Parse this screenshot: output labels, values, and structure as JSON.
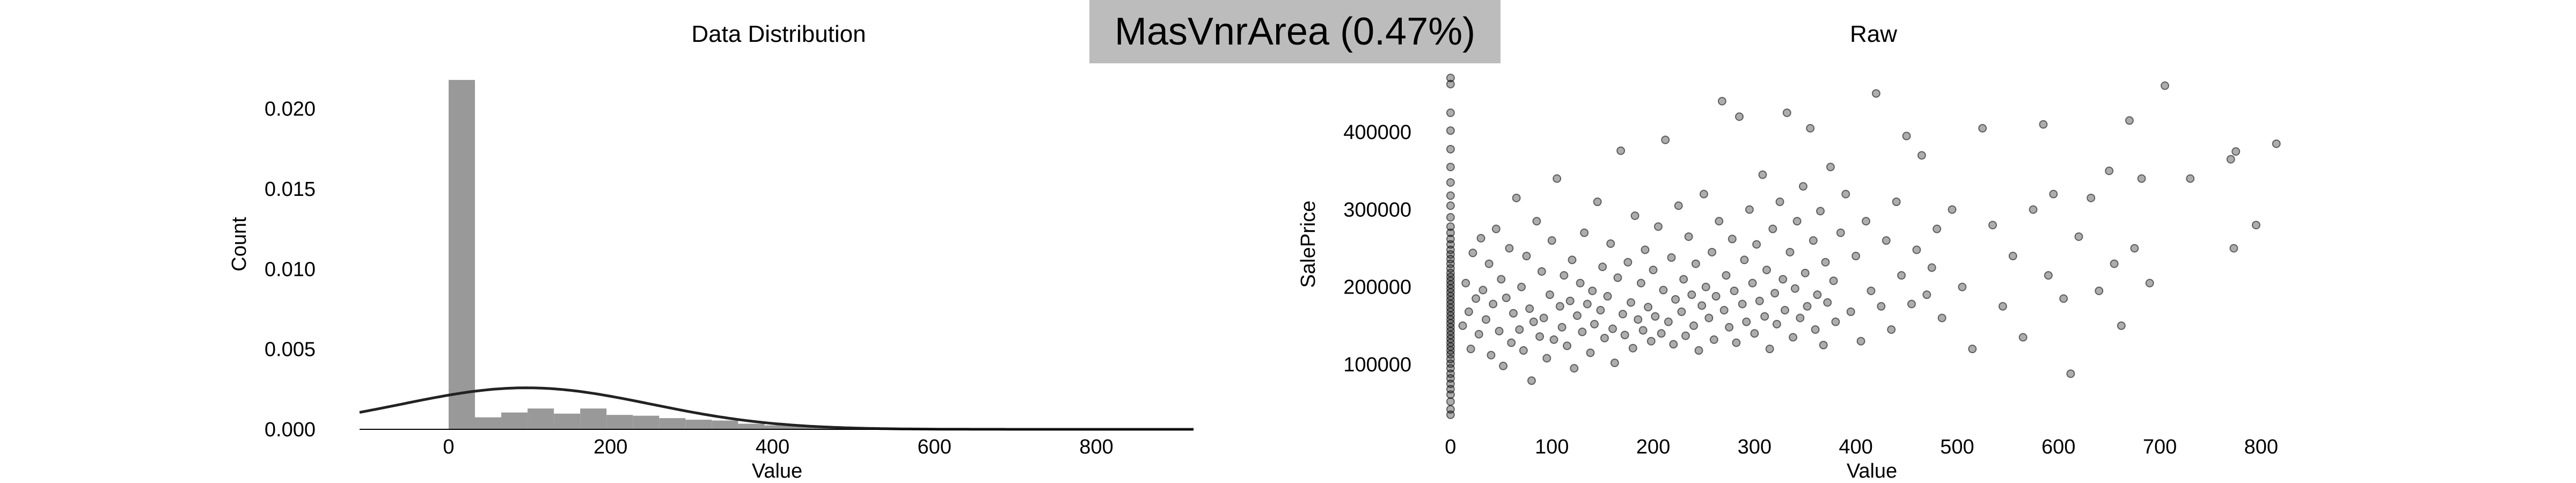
{
  "figure": {
    "title": "MasVnrArea (0.47%)",
    "banner_color": "#bcbcbc"
  },
  "chart_data": [
    {
      "type": "bar",
      "title": "Data Distribution",
      "xlabel": "Value",
      "ylabel": "Count",
      "xlim": [
        -110,
        920
      ],
      "ylim": [
        0,
        0.0221
      ],
      "xticks": [
        0,
        200,
        400,
        600,
        800
      ],
      "yticks": [
        "0.000",
        "0.005",
        "0.010",
        "0.015",
        "0.020"
      ],
      "bar_color": "#999999",
      "curve_color": "#222222",
      "bin_width": 32.5,
      "bins": [
        {
          "x": 0,
          "value": 0.0218
        },
        {
          "x": 32.5,
          "value": 0.00075
        },
        {
          "x": 65,
          "value": 0.00105
        },
        {
          "x": 97.5,
          "value": 0.0013
        },
        {
          "x": 130,
          "value": 0.00098
        },
        {
          "x": 162.5,
          "value": 0.0013
        },
        {
          "x": 195,
          "value": 0.0009
        },
        {
          "x": 227.5,
          "value": 0.00085
        },
        {
          "x": 260,
          "value": 0.0007
        },
        {
          "x": 292.5,
          "value": 0.0006
        },
        {
          "x": 325,
          "value": 0.00055
        },
        {
          "x": 357.5,
          "value": 0.00035
        },
        {
          "x": 390,
          "value": 0.00025
        },
        {
          "x": 422.5,
          "value": 0.0002
        },
        {
          "x": 455,
          "value": 0.0001
        },
        {
          "x": 487.5,
          "value": 8e-05
        },
        {
          "x": 520,
          "value": 6e-05
        },
        {
          "x": 552.5,
          "value": 5e-05
        },
        {
          "x": 585,
          "value": 2e-05
        },
        {
          "x": 617.5,
          "value": 7e-05
        },
        {
          "x": 650,
          "value": 8e-05
        },
        {
          "x": 682.5,
          "value": 1e-05
        },
        {
          "x": 715,
          "value": 2e-05
        },
        {
          "x": 747.5,
          "value": 3e-05
        },
        {
          "x": 780,
          "value": 2e-05
        },
        {
          "x": 812.5,
          "value": 1e-05
        }
      ],
      "fit_curve": {
        "mean": 96,
        "std": 154
      }
    },
    {
      "type": "scatter",
      "title": "Raw",
      "xlabel": "Value",
      "ylabel": "SalePrice",
      "xlim": [
        -10,
        830
      ],
      "ylim": [
        30000,
        475000
      ],
      "xticks": [
        0,
        100,
        200,
        300,
        400,
        500,
        600,
        700,
        800
      ],
      "yticks": [
        100000,
        200000,
        300000,
        400000
      ],
      "point_color": "#000000",
      "points": [
        {
          "x": 0,
          "y": 35000
        },
        {
          "x": 0,
          "y": 42000
        },
        {
          "x": 0,
          "y": 52000
        },
        {
          "x": 0,
          "y": 61000
        },
        {
          "x": 0,
          "y": 68000
        },
        {
          "x": 0,
          "y": 75000
        },
        {
          "x": 0,
          "y": 82000
        },
        {
          "x": 0,
          "y": 88000
        },
        {
          "x": 0,
          "y": 95000
        },
        {
          "x": 0,
          "y": 101000
        },
        {
          "x": 0,
          "y": 107000
        },
        {
          "x": 0,
          "y": 113000
        },
        {
          "x": 0,
          "y": 118000
        },
        {
          "x": 0,
          "y": 123000
        },
        {
          "x": 0,
          "y": 128000
        },
        {
          "x": 0,
          "y": 133000
        },
        {
          "x": 0,
          "y": 138000
        },
        {
          "x": 0,
          "y": 143000
        },
        {
          "x": 0,
          "y": 148000
        },
        {
          "x": 0,
          "y": 153000
        },
        {
          "x": 0,
          "y": 158000
        },
        {
          "x": 0,
          "y": 163000
        },
        {
          "x": 0,
          "y": 168000
        },
        {
          "x": 0,
          "y": 173000
        },
        {
          "x": 0,
          "y": 178000
        },
        {
          "x": 0,
          "y": 183000
        },
        {
          "x": 0,
          "y": 188000
        },
        {
          "x": 0,
          "y": 193000
        },
        {
          "x": 0,
          "y": 198000
        },
        {
          "x": 0,
          "y": 203000
        },
        {
          "x": 0,
          "y": 208000
        },
        {
          "x": 0,
          "y": 213000
        },
        {
          "x": 0,
          "y": 218000
        },
        {
          "x": 0,
          "y": 224000
        },
        {
          "x": 0,
          "y": 230000
        },
        {
          "x": 0,
          "y": 236000
        },
        {
          "x": 0,
          "y": 242000
        },
        {
          "x": 0,
          "y": 248000
        },
        {
          "x": 0,
          "y": 255000
        },
        {
          "x": 0,
          "y": 262000
        },
        {
          "x": 0,
          "y": 270000
        },
        {
          "x": 0,
          "y": 278000
        },
        {
          "x": 0,
          "y": 290000
        },
        {
          "x": 0,
          "y": 305000
        },
        {
          "x": 0,
          "y": 318000
        },
        {
          "x": 0,
          "y": 335000
        },
        {
          "x": 0,
          "y": 355000
        },
        {
          "x": 0,
          "y": 378000
        },
        {
          "x": 0,
          "y": 402000
        },
        {
          "x": 0,
          "y": 425000
        },
        {
          "x": 0,
          "y": 462000
        },
        {
          "x": 0,
          "y": 470000
        },
        {
          "x": 12,
          "y": 150000
        },
        {
          "x": 15,
          "y": 205000
        },
        {
          "x": 18,
          "y": 168000
        },
        {
          "x": 20,
          "y": 120000
        },
        {
          "x": 22,
          "y": 244000
        },
        {
          "x": 25,
          "y": 185000
        },
        {
          "x": 28,
          "y": 139000
        },
        {
          "x": 30,
          "y": 263000
        },
        {
          "x": 32,
          "y": 196000
        },
        {
          "x": 35,
          "y": 158000
        },
        {
          "x": 38,
          "y": 230000
        },
        {
          "x": 40,
          "y": 112000
        },
        {
          "x": 42,
          "y": 178000
        },
        {
          "x": 45,
          "y": 275000
        },
        {
          "x": 48,
          "y": 143000
        },
        {
          "x": 50,
          "y": 210000
        },
        {
          "x": 52,
          "y": 98000
        },
        {
          "x": 55,
          "y": 186000
        },
        {
          "x": 58,
          "y": 250000
        },
        {
          "x": 60,
          "y": 128000
        },
        {
          "x": 62,
          "y": 166000
        },
        {
          "x": 65,
          "y": 315000
        },
        {
          "x": 68,
          "y": 145000
        },
        {
          "x": 70,
          "y": 200000
        },
        {
          "x": 72,
          "y": 118000
        },
        {
          "x": 75,
          "y": 240000
        },
        {
          "x": 78,
          "y": 172000
        },
        {
          "x": 80,
          "y": 79000
        },
        {
          "x": 82,
          "y": 155000
        },
        {
          "x": 85,
          "y": 285000
        },
        {
          "x": 88,
          "y": 136000
        },
        {
          "x": 90,
          "y": 220000
        },
        {
          "x": 92,
          "y": 160000
        },
        {
          "x": 95,
          "y": 108000
        },
        {
          "x": 98,
          "y": 190000
        },
        {
          "x": 100,
          "y": 260000
        },
        {
          "x": 102,
          "y": 132000
        },
        {
          "x": 105,
          "y": 340000
        },
        {
          "x": 108,
          "y": 175000
        },
        {
          "x": 110,
          "y": 148000
        },
        {
          "x": 112,
          "y": 215000
        },
        {
          "x": 115,
          "y": 124000
        },
        {
          "x": 118,
          "y": 182000
        },
        {
          "x": 120,
          "y": 235000
        },
        {
          "x": 122,
          "y": 95000
        },
        {
          "x": 125,
          "y": 163000
        },
        {
          "x": 128,
          "y": 205000
        },
        {
          "x": 130,
          "y": 142000
        },
        {
          "x": 132,
          "y": 270000
        },
        {
          "x": 135,
          "y": 178000
        },
        {
          "x": 138,
          "y": 115000
        },
        {
          "x": 140,
          "y": 195000
        },
        {
          "x": 142,
          "y": 152000
        },
        {
          "x": 145,
          "y": 310000
        },
        {
          "x": 148,
          "y": 170000
        },
        {
          "x": 150,
          "y": 226000
        },
        {
          "x": 152,
          "y": 134000
        },
        {
          "x": 155,
          "y": 188000
        },
        {
          "x": 158,
          "y": 256000
        },
        {
          "x": 160,
          "y": 146000
        },
        {
          "x": 162,
          "y": 102000
        },
        {
          "x": 165,
          "y": 212000
        },
        {
          "x": 168,
          "y": 376000
        },
        {
          "x": 170,
          "y": 165000
        },
        {
          "x": 172,
          "y": 138000
        },
        {
          "x": 175,
          "y": 232000
        },
        {
          "x": 178,
          "y": 180000
        },
        {
          "x": 180,
          "y": 121000
        },
        {
          "x": 182,
          "y": 292000
        },
        {
          "x": 185,
          "y": 158000
        },
        {
          "x": 188,
          "y": 205000
        },
        {
          "x": 190,
          "y": 144000
        },
        {
          "x": 192,
          "y": 248000
        },
        {
          "x": 195,
          "y": 174000
        },
        {
          "x": 198,
          "y": 130000
        },
        {
          "x": 200,
          "y": 222000
        },
        {
          "x": 202,
          "y": 162000
        },
        {
          "x": 205,
          "y": 278000
        },
        {
          "x": 208,
          "y": 140000
        },
        {
          "x": 210,
          "y": 196000
        },
        {
          "x": 212,
          "y": 390000
        },
        {
          "x": 215,
          "y": 155000
        },
        {
          "x": 218,
          "y": 238000
        },
        {
          "x": 220,
          "y": 126000
        },
        {
          "x": 222,
          "y": 184000
        },
        {
          "x": 225,
          "y": 305000
        },
        {
          "x": 228,
          "y": 168000
        },
        {
          "x": 230,
          "y": 210000
        },
        {
          "x": 232,
          "y": 137000
        },
        {
          "x": 235,
          "y": 265000
        },
        {
          "x": 238,
          "y": 190000
        },
        {
          "x": 240,
          "y": 150000
        },
        {
          "x": 242,
          "y": 230000
        },
        {
          "x": 245,
          "y": 118000
        },
        {
          "x": 248,
          "y": 176000
        },
        {
          "x": 250,
          "y": 320000
        },
        {
          "x": 252,
          "y": 200000
        },
        {
          "x": 255,
          "y": 160000
        },
        {
          "x": 258,
          "y": 245000
        },
        {
          "x": 260,
          "y": 132000
        },
        {
          "x": 262,
          "y": 188000
        },
        {
          "x": 265,
          "y": 285000
        },
        {
          "x": 268,
          "y": 440000
        },
        {
          "x": 270,
          "y": 170000
        },
        {
          "x": 272,
          "y": 215000
        },
        {
          "x": 275,
          "y": 148000
        },
        {
          "x": 278,
          "y": 262000
        },
        {
          "x": 280,
          "y": 195000
        },
        {
          "x": 282,
          "y": 128000
        },
        {
          "x": 285,
          "y": 420000
        },
        {
          "x": 288,
          "y": 178000
        },
        {
          "x": 290,
          "y": 235000
        },
        {
          "x": 292,
          "y": 155000
        },
        {
          "x": 295,
          "y": 300000
        },
        {
          "x": 298,
          "y": 205000
        },
        {
          "x": 300,
          "y": 140000
        },
        {
          "x": 302,
          "y": 255000
        },
        {
          "x": 305,
          "y": 182000
        },
        {
          "x": 308,
          "y": 345000
        },
        {
          "x": 310,
          "y": 162000
        },
        {
          "x": 312,
          "y": 222000
        },
        {
          "x": 315,
          "y": 120000
        },
        {
          "x": 318,
          "y": 275000
        },
        {
          "x": 320,
          "y": 192000
        },
        {
          "x": 322,
          "y": 152000
        },
        {
          "x": 325,
          "y": 310000
        },
        {
          "x": 328,
          "y": 210000
        },
        {
          "x": 330,
          "y": 170000
        },
        {
          "x": 332,
          "y": 425000
        },
        {
          "x": 335,
          "y": 245000
        },
        {
          "x": 338,
          "y": 135000
        },
        {
          "x": 340,
          "y": 198000
        },
        {
          "x": 342,
          "y": 285000
        },
        {
          "x": 345,
          "y": 160000
        },
        {
          "x": 348,
          "y": 330000
        },
        {
          "x": 350,
          "y": 218000
        },
        {
          "x": 352,
          "y": 175000
        },
        {
          "x": 355,
          "y": 405000
        },
        {
          "x": 358,
          "y": 260000
        },
        {
          "x": 360,
          "y": 145000
        },
        {
          "x": 362,
          "y": 190000
        },
        {
          "x": 365,
          "y": 298000
        },
        {
          "x": 368,
          "y": 125000
        },
        {
          "x": 370,
          "y": 232000
        },
        {
          "x": 372,
          "y": 180000
        },
        {
          "x": 375,
          "y": 355000
        },
        {
          "x": 378,
          "y": 208000
        },
        {
          "x": 380,
          "y": 155000
        },
        {
          "x": 385,
          "y": 270000
        },
        {
          "x": 390,
          "y": 320000
        },
        {
          "x": 395,
          "y": 168000
        },
        {
          "x": 400,
          "y": 240000
        },
        {
          "x": 405,
          "y": 130000
        },
        {
          "x": 410,
          "y": 285000
        },
        {
          "x": 415,
          "y": 195000
        },
        {
          "x": 420,
          "y": 450000
        },
        {
          "x": 425,
          "y": 175000
        },
        {
          "x": 430,
          "y": 260000
        },
        {
          "x": 435,
          "y": 145000
        },
        {
          "x": 440,
          "y": 310000
        },
        {
          "x": 445,
          "y": 215000
        },
        {
          "x": 450,
          "y": 395000
        },
        {
          "x": 455,
          "y": 178000
        },
        {
          "x": 460,
          "y": 248000
        },
        {
          "x": 465,
          "y": 370000
        },
        {
          "x": 470,
          "y": 190000
        },
        {
          "x": 475,
          "y": 225000
        },
        {
          "x": 480,
          "y": 275000
        },
        {
          "x": 485,
          "y": 160000
        },
        {
          "x": 495,
          "y": 300000
        },
        {
          "x": 505,
          "y": 200000
        },
        {
          "x": 515,
          "y": 120000
        },
        {
          "x": 525,
          "y": 405000
        },
        {
          "x": 535,
          "y": 280000
        },
        {
          "x": 545,
          "y": 175000
        },
        {
          "x": 555,
          "y": 240000
        },
        {
          "x": 565,
          "y": 135000
        },
        {
          "x": 575,
          "y": 300000
        },
        {
          "x": 585,
          "y": 410000
        },
        {
          "x": 590,
          "y": 215000
        },
        {
          "x": 595,
          "y": 320000
        },
        {
          "x": 605,
          "y": 185000
        },
        {
          "x": 612,
          "y": 88000
        },
        {
          "x": 620,
          "y": 265000
        },
        {
          "x": 632,
          "y": 315000
        },
        {
          "x": 640,
          "y": 195000
        },
        {
          "x": 650,
          "y": 350000
        },
        {
          "x": 655,
          "y": 230000
        },
        {
          "x": 662,
          "y": 150000
        },
        {
          "x": 670,
          "y": 415000
        },
        {
          "x": 675,
          "y": 250000
        },
        {
          "x": 682,
          "y": 340000
        },
        {
          "x": 690,
          "y": 205000
        },
        {
          "x": 705,
          "y": 460000
        },
        {
          "x": 730,
          "y": 340000
        },
        {
          "x": 770,
          "y": 365000
        },
        {
          "x": 775,
          "y": 375000
        },
        {
          "x": 773,
          "y": 250000
        },
        {
          "x": 795,
          "y": 280000
        },
        {
          "x": 815,
          "y": 385000
        }
      ]
    }
  ]
}
